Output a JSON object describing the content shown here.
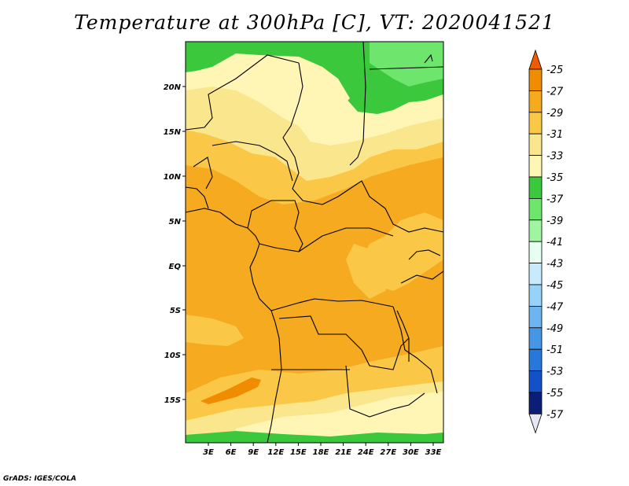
{
  "title": "Temperature at 300hPa [C], VT: 2020041521",
  "credit": "GrADS: IGES/COLA",
  "lat_labels": [
    "20N",
    "15N",
    "10N",
    "5N",
    "EQ",
    "5S",
    "10S",
    "15S"
  ],
  "lon_labels": [
    "3E",
    "6E",
    "9E",
    "12E",
    "15E",
    "18E",
    "21E",
    "24E",
    "27E",
    "30E",
    "33E"
  ],
  "colorbar": {
    "labels": [
      "-25",
      "-27",
      "-29",
      "-31",
      "-33",
      "-35",
      "-37",
      "-39",
      "-41",
      "-43",
      "-45",
      "-47",
      "-49",
      "-51",
      "-53",
      "-55",
      "-57"
    ],
    "colors": [
      "#f05a00",
      "#f08c00",
      "#f5aa20",
      "#fac846",
      "#fae68c",
      "#fff5b4",
      "#3cc83c",
      "#6ee66e",
      "#a0f5a0",
      "#e6fff0",
      "#c8eaff",
      "#96d2fa",
      "#6eb4f0",
      "#4696e6",
      "#2878dc",
      "#1450c8",
      "#0a1e78",
      "#e6e6f5"
    ]
  },
  "map": {
    "lat_range": [
      -19,
      25
    ],
    "lon_range": [
      0,
      35
    ],
    "field_colors": {
      "warm": "#f5aa20",
      "mid": "#fac846",
      "cool": "#fae68c",
      "coolest": "#fff5b4",
      "green": "#3cc83c",
      "light_green": "#6ee66e",
      "hot": "#f08c00"
    }
  }
}
